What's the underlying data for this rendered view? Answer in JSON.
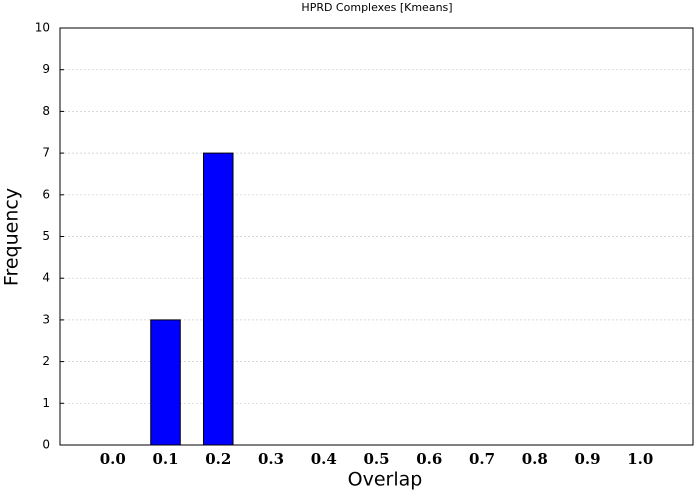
{
  "chart_data": {
    "type": "bar",
    "title": "HPRD Complexes [Kmeans]",
    "xlabel": "Overlap",
    "ylabel": "Frequency",
    "categories": [
      "0.0",
      "0.1",
      "0.2",
      "0.3",
      "0.4",
      "0.5",
      "0.6",
      "0.7",
      "0.8",
      "0.9",
      "1.0"
    ],
    "values": [
      0,
      3,
      7,
      0,
      0,
      0,
      0,
      0,
      0,
      0,
      0
    ],
    "color": "#0000ff",
    "ylim": [
      0,
      10
    ],
    "yticks": [
      0,
      1,
      2,
      3,
      4,
      5,
      6,
      7,
      8,
      9,
      10
    ],
    "grid": true
  }
}
